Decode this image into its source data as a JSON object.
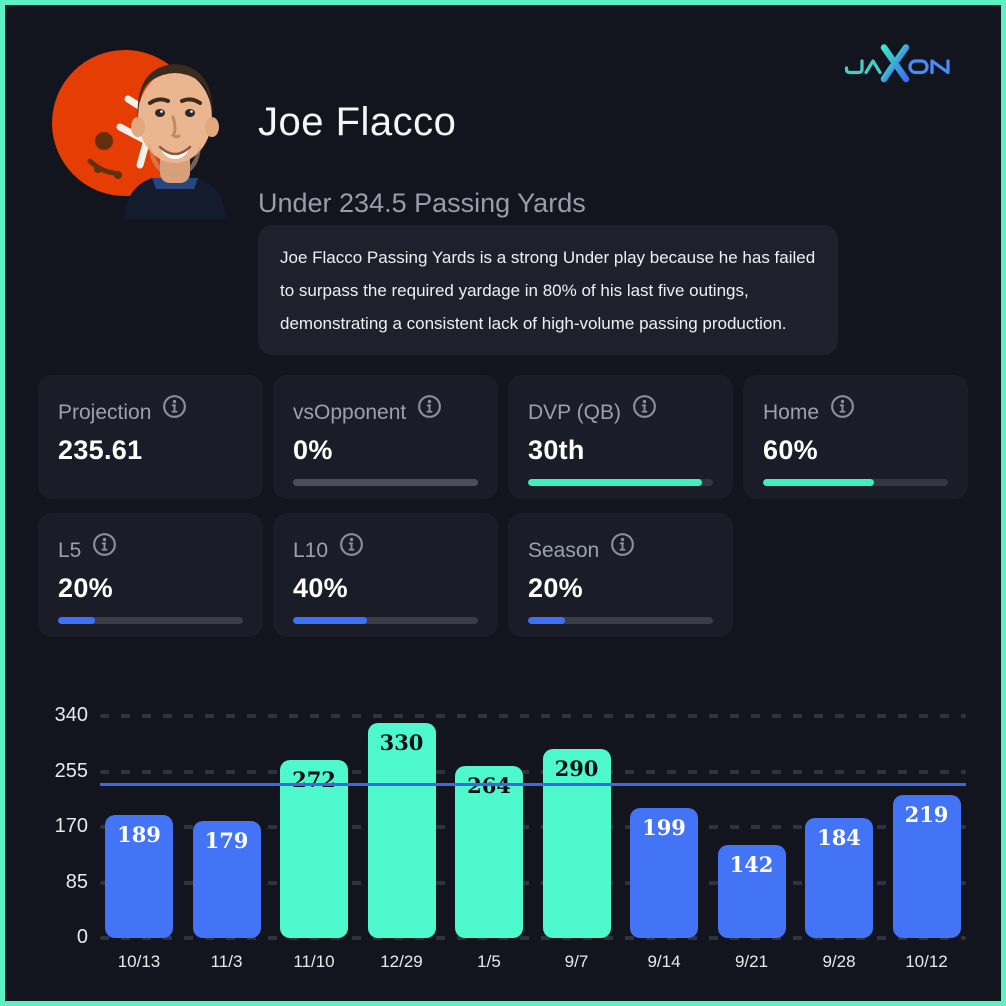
{
  "brand": {
    "name": "JAXON",
    "teal": "#46cdc5",
    "blue": "#4a8cf6"
  },
  "player": {
    "name": "Joe Flacco",
    "team_logo": "cleveland-browns-helmet",
    "headshot": "joe-flacco-photo",
    "prop_line": "Under 234.5 Passing Yards",
    "insight": "Joe Flacco Passing Yards is a strong Under play because he has failed to surpass the required yardage in 80% of his last five outings, demonstrating a consistent lack of high-volume passing production."
  },
  "icons": {
    "info": "circled-i"
  },
  "stats": {
    "cards": [
      {
        "label": "Projection",
        "value": "235.61",
        "bar": null
      },
      {
        "label": "vsOpponent",
        "value": "0%",
        "bar": {
          "pct": 0,
          "fill": "#4070f4",
          "track": "#4a4e58"
        }
      },
      {
        "label": "DVP (QB)",
        "value": "30th",
        "bar": {
          "pct": 94,
          "fill": "#3ef0ba",
          "track": "#32353d"
        }
      },
      {
        "label": "Home",
        "value": "60%",
        "bar": {
          "pct": 60,
          "fill": "#3ef0ba",
          "track": "#343740"
        }
      },
      {
        "label": "L5",
        "value": "20%",
        "bar": {
          "pct": 20,
          "fill": "#4070f4",
          "track": "#3a3d46"
        }
      },
      {
        "label": "L10",
        "value": "40%",
        "bar": {
          "pct": 40,
          "fill": "#4070f4",
          "track": "#3a3d46"
        }
      },
      {
        "label": "Season",
        "value": "20%",
        "bar": {
          "pct": 20,
          "fill": "#4070f4",
          "track": "#3a3d46"
        }
      }
    ]
  },
  "chart_data": {
    "type": "bar",
    "title": "",
    "x": [
      "10/13",
      "11/3",
      "11/10",
      "12/29",
      "1/5",
      "9/7",
      "9/14",
      "9/21",
      "9/28",
      "10/12"
    ],
    "values": [
      189,
      179,
      272,
      330,
      264,
      290,
      199,
      142,
      184,
      219
    ],
    "yticks": [
      0,
      85,
      170,
      255,
      340
    ],
    "ylim": [
      0,
      340
    ],
    "line_value": 234.5,
    "grid": "dashed-horizontal",
    "over_color": "#4df9cd",
    "under_color": "#4374f6",
    "over_label_color": "#0a1016",
    "under_label_color": "#ffffff",
    "line_color": "#3c68e8"
  }
}
